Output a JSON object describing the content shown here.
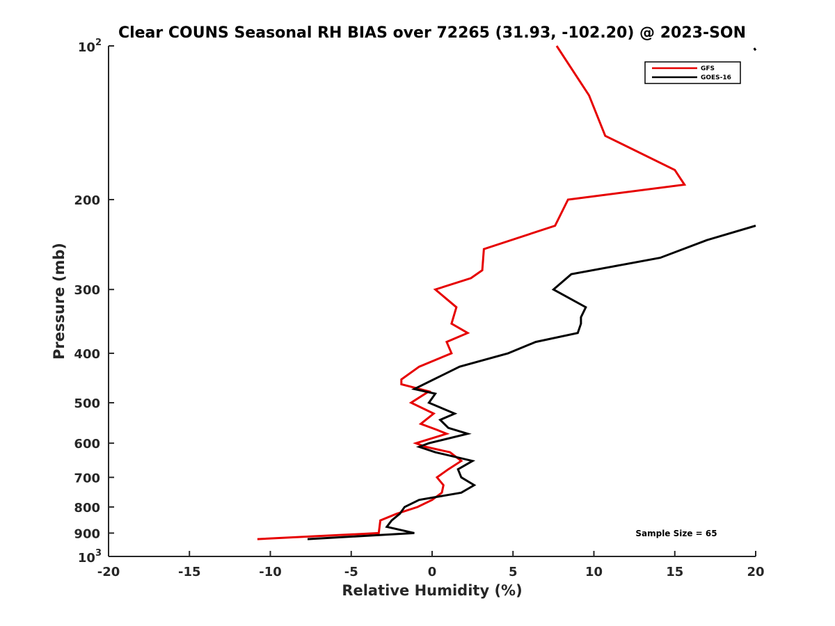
{
  "chart_data": {
    "type": "line",
    "title": "Clear COUNS Seasonal RH BIAS over 72265 (31.93, -102.20) @ 2023-SON",
    "xlabel": "Relative Humidity (%)",
    "ylabel": "Pressure (mb)",
    "xlim": [
      -20,
      20
    ],
    "ylim": [
      100,
      1000
    ],
    "y_scale": "log",
    "y_reversed": true,
    "grid": false,
    "legend_position": "top-right",
    "x_ticks": [
      -20,
      -15,
      -10,
      -5,
      0,
      5,
      10,
      15,
      20
    ],
    "x_tick_labels": [
      "-20",
      "-15",
      "-10",
      "-5",
      "0",
      "5",
      "10",
      "15",
      "20"
    ],
    "y_ticks": [
      {
        "value": 100,
        "base": "10",
        "exp": "2"
      },
      {
        "value": 200,
        "label": "200"
      },
      {
        "value": 300,
        "label": "300"
      },
      {
        "value": 400,
        "label": "400"
      },
      {
        "value": 500,
        "label": "500"
      },
      {
        "value": 600,
        "label": "600"
      },
      {
        "value": 700,
        "label": "700"
      },
      {
        "value": 800,
        "label": "800"
      },
      {
        "value": 900,
        "label": "900"
      },
      {
        "value": 1000,
        "base": "10",
        "exp": "3"
      }
    ],
    "series": [
      {
        "name": "GFS",
        "color": "#e60000",
        "points": [
          {
            "x": 7.7,
            "y": 100
          },
          {
            "x": 9.7,
            "y": 125
          },
          {
            "x": 10.7,
            "y": 150
          },
          {
            "x": 15.0,
            "y": 175
          },
          {
            "x": 15.6,
            "y": 187
          },
          {
            "x": 8.4,
            "y": 200
          },
          {
            "x": 7.6,
            "y": 225
          },
          {
            "x": 3.2,
            "y": 250
          },
          {
            "x": 3.1,
            "y": 275
          },
          {
            "x": 2.4,
            "y": 285
          },
          {
            "x": 0.2,
            "y": 300
          },
          {
            "x": 1.5,
            "y": 325
          },
          {
            "x": 1.2,
            "y": 350
          },
          {
            "x": 2.2,
            "y": 365
          },
          {
            "x": 0.9,
            "y": 380
          },
          {
            "x": 1.2,
            "y": 400
          },
          {
            "x": -0.8,
            "y": 425
          },
          {
            "x": -1.9,
            "y": 450
          },
          {
            "x": -1.9,
            "y": 460
          },
          {
            "x": -0.2,
            "y": 475
          },
          {
            "x": -1.3,
            "y": 500
          },
          {
            "x": 0.1,
            "y": 525
          },
          {
            "x": -0.7,
            "y": 550
          },
          {
            "x": 0.3,
            "y": 565
          },
          {
            "x": 0.9,
            "y": 575
          },
          {
            "x": -1.0,
            "y": 600
          },
          {
            "x": -0.4,
            "y": 610
          },
          {
            "x": 1.1,
            "y": 625
          },
          {
            "x": 1.8,
            "y": 650
          },
          {
            "x": 1.0,
            "y": 675
          },
          {
            "x": 0.3,
            "y": 700
          },
          {
            "x": 0.7,
            "y": 725
          },
          {
            "x": 0.6,
            "y": 750
          },
          {
            "x": 0.0,
            "y": 775
          },
          {
            "x": -0.9,
            "y": 800
          },
          {
            "x": -2.2,
            "y": 825
          },
          {
            "x": -3.2,
            "y": 850
          },
          {
            "x": -3.3,
            "y": 900
          },
          {
            "x": -10.8,
            "y": 925
          }
        ]
      },
      {
        "name": "GOES-16",
        "color": "#000000",
        "points": [
          {
            "x": 20.0,
            "y": 225
          },
          {
            "x": 17.0,
            "y": 240
          },
          {
            "x": 14.1,
            "y": 260
          },
          {
            "x": 8.6,
            "y": 280
          },
          {
            "x": 7.5,
            "y": 300
          },
          {
            "x": 9.5,
            "y": 325
          },
          {
            "x": 9.2,
            "y": 340
          },
          {
            "x": 9.2,
            "y": 350
          },
          {
            "x": 9.0,
            "y": 365
          },
          {
            "x": 6.4,
            "y": 380
          },
          {
            "x": 4.7,
            "y": 400
          },
          {
            "x": 1.7,
            "y": 425
          },
          {
            "x": 0.1,
            "y": 450
          },
          {
            "x": -1.1,
            "y": 470
          },
          {
            "x": 0.2,
            "y": 480
          },
          {
            "x": -0.2,
            "y": 500
          },
          {
            "x": 1.4,
            "y": 525
          },
          {
            "x": 0.5,
            "y": 540
          },
          {
            "x": 1.0,
            "y": 560
          },
          {
            "x": 2.2,
            "y": 575
          },
          {
            "x": -0.2,
            "y": 600
          },
          {
            "x": -0.8,
            "y": 610
          },
          {
            "x": 0.2,
            "y": 625
          },
          {
            "x": 2.5,
            "y": 650
          },
          {
            "x": 1.6,
            "y": 675
          },
          {
            "x": 1.8,
            "y": 700
          },
          {
            "x": 2.6,
            "y": 725
          },
          {
            "x": 1.8,
            "y": 750
          },
          {
            "x": -0.8,
            "y": 775
          },
          {
            "x": -1.7,
            "y": 800
          },
          {
            "x": -2.0,
            "y": 825
          },
          {
            "x": -2.5,
            "y": 850
          },
          {
            "x": -2.8,
            "y": 875
          },
          {
            "x": -1.1,
            "y": 900
          },
          {
            "x": -7.7,
            "y": 925
          }
        ],
        "extra_segment": [
          {
            "x": 19.9,
            "y": 101
          },
          {
            "x": 20.0,
            "y": 102
          }
        ]
      }
    ],
    "annotations": [
      {
        "text": "Sample Size = 65",
        "position": "bottom-right"
      }
    ]
  }
}
